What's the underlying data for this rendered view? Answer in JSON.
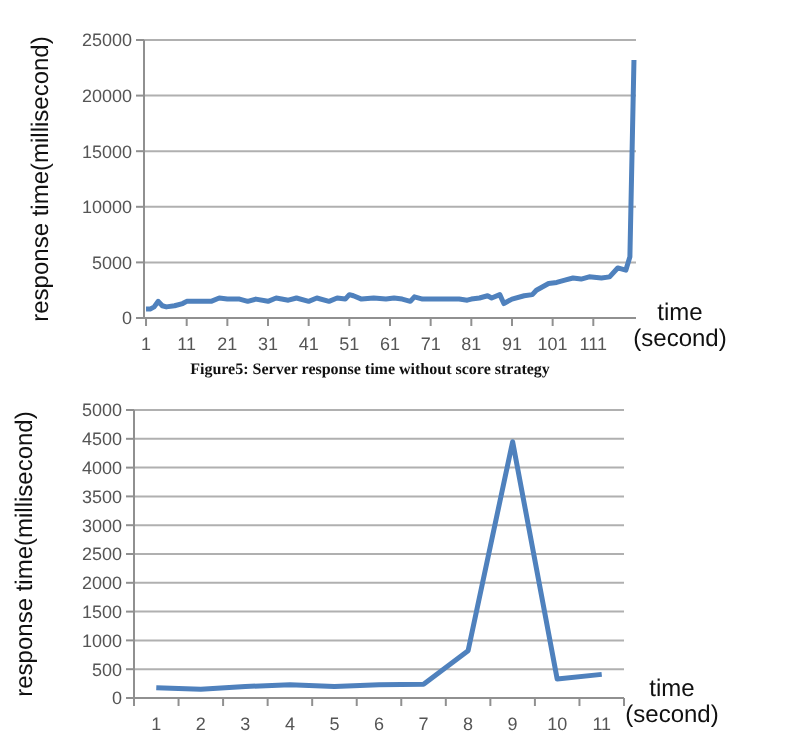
{
  "chart_data": [
    {
      "type": "line",
      "xlabel": "time (second)",
      "ylabel": "response time(millisecond)",
      "annotations": [
        "Figure5: Server response time without score strategy"
      ],
      "xlim": [
        0.5,
        121.5
      ],
      "ylim": [
        0,
        25000
      ],
      "xticks": [
        1,
        11,
        21,
        31,
        41,
        51,
        61,
        71,
        81,
        91,
        101,
        111
      ],
      "yticks": [
        0,
        5000,
        10000,
        15000,
        20000,
        25000
      ],
      "grid": "y",
      "marker": "none",
      "line_style": "solid",
      "series": [
        {
          "color": "#4f81bd",
          "x": [
            1,
            2,
            3,
            4,
            5,
            6,
            8,
            10,
            11,
            13,
            17,
            19,
            21,
            24,
            26,
            28,
            31,
            33,
            36,
            38,
            41,
            43,
            46,
            48,
            50,
            51,
            52,
            54,
            57,
            60,
            62,
            64,
            66,
            67,
            69,
            72,
            75,
            78,
            80,
            81,
            83,
            85,
            86,
            88,
            89,
            91,
            94,
            96,
            97,
            99,
            100,
            102,
            104,
            106,
            108,
            110,
            113,
            115,
            117,
            119,
            120,
            121
          ],
          "values": [
            800,
            800,
            1000,
            1500,
            1100,
            1000,
            1100,
            1300,
            1500,
            1500,
            1500,
            1800,
            1700,
            1700,
            1500,
            1700,
            1500,
            1800,
            1600,
            1800,
            1500,
            1800,
            1500,
            1800,
            1700,
            2100,
            2000,
            1700,
            1800,
            1700,
            1800,
            1700,
            1500,
            1900,
            1700,
            1700,
            1700,
            1700,
            1600,
            1700,
            1800,
            2000,
            1800,
            2100,
            1300,
            1700,
            2000,
            2100,
            2500,
            2900,
            3100,
            3200,
            3400,
            3600,
            3500,
            3700,
            3600,
            3700,
            4500,
            4300,
            5500,
            23200
          ]
        }
      ]
    },
    {
      "type": "line",
      "xlabel": "time (second)",
      "ylabel": "response time(millisecond)",
      "categories": [
        "1",
        "2",
        "3",
        "4",
        "5",
        "6",
        "7",
        "8",
        "9",
        "10",
        "11"
      ],
      "ylim": [
        0,
        5000
      ],
      "yticks": [
        0,
        500,
        1000,
        1500,
        2000,
        2500,
        3000,
        3500,
        4000,
        4500,
        5000
      ],
      "grid": "y",
      "marker": "none",
      "line_style": "solid",
      "series": [
        {
          "color": "#4f81bd",
          "values": [
            180,
            150,
            200,
            230,
            200,
            230,
            240,
            820,
            4450,
            330,
            410
          ]
        }
      ]
    }
  ]
}
